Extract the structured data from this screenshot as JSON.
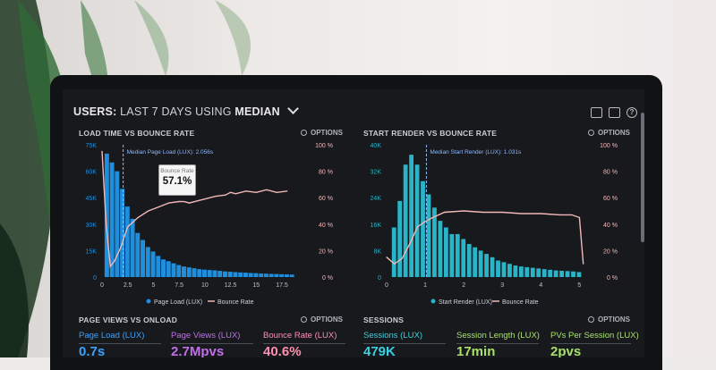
{
  "header": {
    "title_prefix": "USERS:",
    "title_range": "LAST 7 DAYS",
    "title_using": "USING",
    "title_stat": "MEDIAN"
  },
  "icons": [
    "monitor-icon",
    "image-icon",
    "help-icon"
  ],
  "colors": {
    "bar_left": "#1f8fdd",
    "bar_right": "#2ab4c8",
    "bounce_line": "#f2b8b8",
    "median_line": "#8fb9ff",
    "metric_blue": "#3aa2ff",
    "metric_purple": "#c070e8",
    "metric_pink": "#ff8fb0",
    "metric_cyan": "#3ad0e0",
    "metric_green": "#a8e06a"
  },
  "panels": {
    "load_time": {
      "title": "LOAD TIME VS BOUNCE RATE",
      "options": "OPTIONS"
    },
    "start_render": {
      "title": "START RENDER VS BOUNCE RATE",
      "options": "OPTIONS"
    },
    "page_views": {
      "title": "PAGE VIEWS VS ONLOAD",
      "options": "OPTIONS"
    },
    "sessions": {
      "title": "SESSIONS",
      "options": "OPTIONS"
    }
  },
  "tooltip": {
    "label": "Bounce Rate",
    "value": "57.1%"
  },
  "chart_data": [
    {
      "type": "bar",
      "y_left_ticks": [
        "75K",
        "60K",
        "45K",
        "30K",
        "15K",
        "0"
      ],
      "y_right_ticks": [
        "100 %",
        "80 %",
        "60 %",
        "40 %",
        "20 %",
        "0 %"
      ],
      "x_ticks": [
        "0",
        "2.5",
        "5",
        "7.5",
        "10",
        "12.5",
        "15",
        "17.5"
      ],
      "xlim": [
        0,
        19.5
      ],
      "ylim": [
        0,
        75000
      ],
      "y2lim": [
        0,
        100
      ],
      "median_label": "Median Page Load (LUX): 2.056s",
      "median_x": 2.056,
      "bar_width": 0.5,
      "series": [
        {
          "name": "Page Load (LUX)",
          "x": [
            0.5,
            1,
            1.5,
            2,
            2.5,
            3,
            3.5,
            4,
            4.5,
            5,
            5.5,
            6,
            6.5,
            7,
            7.5,
            8,
            8.5,
            9,
            9.5,
            10,
            10.5,
            11,
            11.5,
            12,
            12.5,
            13,
            13.5,
            14,
            14.5,
            15,
            15.5,
            16,
            16.5,
            17,
            17.5,
            18,
            18.5
          ],
          "values": [
            70000,
            65000,
            60000,
            50000,
            40000,
            33000,
            25000,
            21000,
            17000,
            14500,
            12000,
            10000,
            9000,
            7800,
            6800,
            6000,
            5500,
            5000,
            4500,
            4200,
            4000,
            3800,
            3500,
            3200,
            3000,
            2800,
            2600,
            2500,
            2300,
            2200,
            2000,
            1900,
            1800,
            1700,
            1600,
            1500,
            1400
          ]
        },
        {
          "name": "Bounce Rate",
          "x": [
            0,
            0.4,
            0.8,
            1.2,
            1.8,
            2.5,
            3.5,
            4.5,
            5.5,
            6.5,
            7.5,
            8,
            8.5,
            9,
            10,
            11,
            12,
            12.5,
            13,
            14,
            15,
            16,
            17,
            18
          ],
          "values": [
            95,
            40,
            8,
            12,
            22,
            38,
            45,
            50,
            53,
            56,
            57.1,
            57,
            56,
            57,
            59,
            61,
            62,
            64,
            63,
            65,
            64,
            66,
            64,
            65
          ]
        }
      ],
      "legend": [
        "Page Load (LUX)",
        "Bounce Rate"
      ]
    },
    {
      "type": "bar",
      "y_left_ticks": [
        "40K",
        "32K",
        "24K",
        "16K",
        "8K",
        "0"
      ],
      "y_right_ticks": [
        "100 %",
        "80 %",
        "60 %",
        "40 %",
        "20 %",
        "0 %"
      ],
      "x_ticks": [
        "0",
        "1",
        "2",
        "3",
        "4",
        "5"
      ],
      "xlim": [
        0,
        5.2
      ],
      "ylim": [
        0,
        40000
      ],
      "y2lim": [
        0,
        100
      ],
      "median_label": "Median Start Render (LUX): 1.031s",
      "median_x": 1.031,
      "bar_width": 0.13,
      "series": [
        {
          "name": "Start Render (LUX)",
          "x": [
            0.2,
            0.35,
            0.5,
            0.65,
            0.8,
            0.95,
            1.1,
            1.25,
            1.4,
            1.55,
            1.7,
            1.85,
            2.0,
            2.15,
            2.3,
            2.45,
            2.6,
            2.75,
            2.9,
            3.05,
            3.2,
            3.35,
            3.5,
            3.65,
            3.8,
            3.95,
            4.1,
            4.25,
            4.4,
            4.55,
            4.7,
            4.85,
            5.0
          ],
          "values": [
            15000,
            23000,
            34000,
            37000,
            34000,
            29000,
            25000,
            21000,
            17000,
            15000,
            13000,
            13000,
            11500,
            10000,
            9000,
            8000,
            7000,
            6000,
            5000,
            4500,
            4000,
            3500,
            3200,
            3000,
            2800,
            2600,
            2400,
            2200,
            2000,
            1900,
            1800,
            1700,
            1500
          ]
        },
        {
          "name": "Bounce Rate",
          "x": [
            0,
            0.2,
            0.4,
            0.6,
            0.8,
            1.0,
            1.2,
            1.5,
            2,
            2.5,
            3,
            3.5,
            4,
            4.5,
            4.8,
            5.0,
            5.1
          ],
          "values": [
            15,
            10,
            14,
            25,
            38,
            42,
            45,
            49,
            50,
            49,
            49,
            48,
            48,
            47,
            47,
            45,
            10
          ]
        }
      ],
      "legend": [
        "Start Render (LUX)",
        "Bounce Rate"
      ]
    }
  ],
  "metrics": [
    {
      "label": "Page Load (LUX)",
      "value": "0.7s"
    },
    {
      "label": "Page Views (LUX)",
      "value": "2.7Mpvs"
    },
    {
      "label": "Bounce Rate (LUX)",
      "value": "40.6%"
    },
    {
      "label": "Sessions (LUX)",
      "value": "479K"
    },
    {
      "label": "Session Length (LUX)",
      "value": "17min"
    },
    {
      "label": "PVs Per Session (LUX)",
      "value": "2pvs"
    }
  ]
}
